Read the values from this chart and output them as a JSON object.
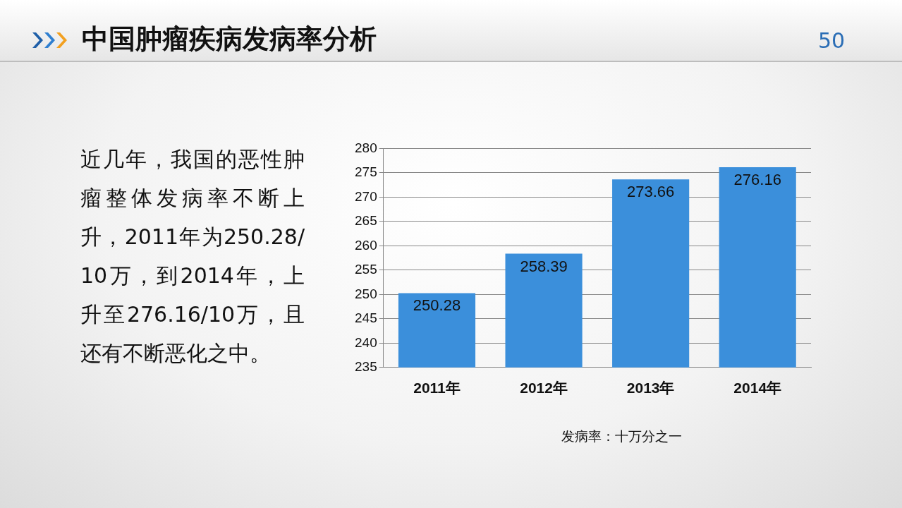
{
  "chart_data": {
    "type": "bar",
    "title": "中国肿瘤疾病发病率分析",
    "categories": [
      "2011年",
      "2012年",
      "2013年",
      "2014年"
    ],
    "values": [
      250.28,
      258.39,
      273.66,
      276.16
    ],
    "color": "#3b8fdb",
    "ylim": [
      235,
      280
    ],
    "yticks": [
      235,
      240,
      245,
      250,
      255,
      260,
      265,
      270,
      275,
      280
    ],
    "grid": "y",
    "data_labels": true,
    "legend": false,
    "annotations": [
      "近几年，我国的恶性肿瘤整体发病率不断上升，2011年为250.28/10万，到2014年，上升至276.16/10万，且还有不断恶化之中。",
      "发病率：十万分之一",
      "50"
    ]
  }
}
